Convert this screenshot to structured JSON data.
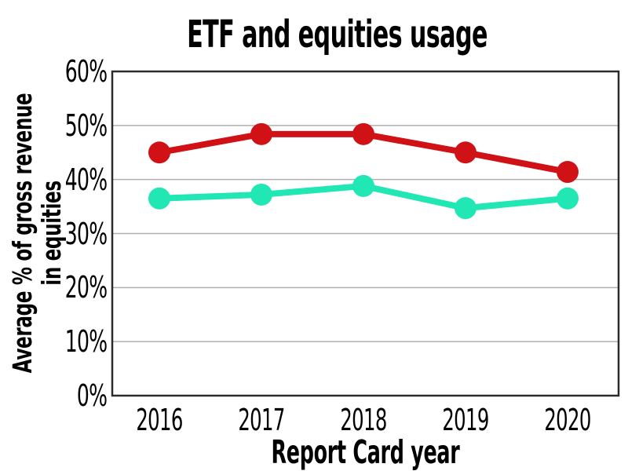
{
  "chart_data": {
    "type": "line",
    "title": "ETF and equities usage",
    "xlabel": "Report Card year",
    "ylabel": "Average % of gross revenue in equities",
    "ylabel_lines": [
      "Average % of gross revenue",
      "in equities"
    ],
    "categories": [
      "2016",
      "2017",
      "2018",
      "2019",
      "2020"
    ],
    "series": [
      {
        "name": "red-series",
        "color": "#d01217",
        "values": [
          45,
          48.4,
          48.4,
          45,
          41.4
        ]
      },
      {
        "name": "teal-series",
        "color": "#20e7b3",
        "values": [
          36.5,
          37.2,
          38.8,
          34.7,
          36.5
        ]
      }
    ],
    "ylim": [
      0,
      60
    ],
    "yticks": [
      {
        "value": 0,
        "label": "0%"
      },
      {
        "value": 10,
        "label": "10%"
      },
      {
        "value": 20,
        "label": "20%"
      },
      {
        "value": 30,
        "label": "30%"
      },
      {
        "value": 40,
        "label": "40%"
      },
      {
        "value": 50,
        "label": "50%"
      },
      {
        "value": 60,
        "label": "60%"
      }
    ],
    "grid": true,
    "legend": false,
    "marker_radius": 14,
    "line_width": 8,
    "colors": {
      "grid": "#b0b0b0",
      "frame": "#2b2b2b",
      "text": "#000000",
      "background": "#ffffff"
    }
  }
}
